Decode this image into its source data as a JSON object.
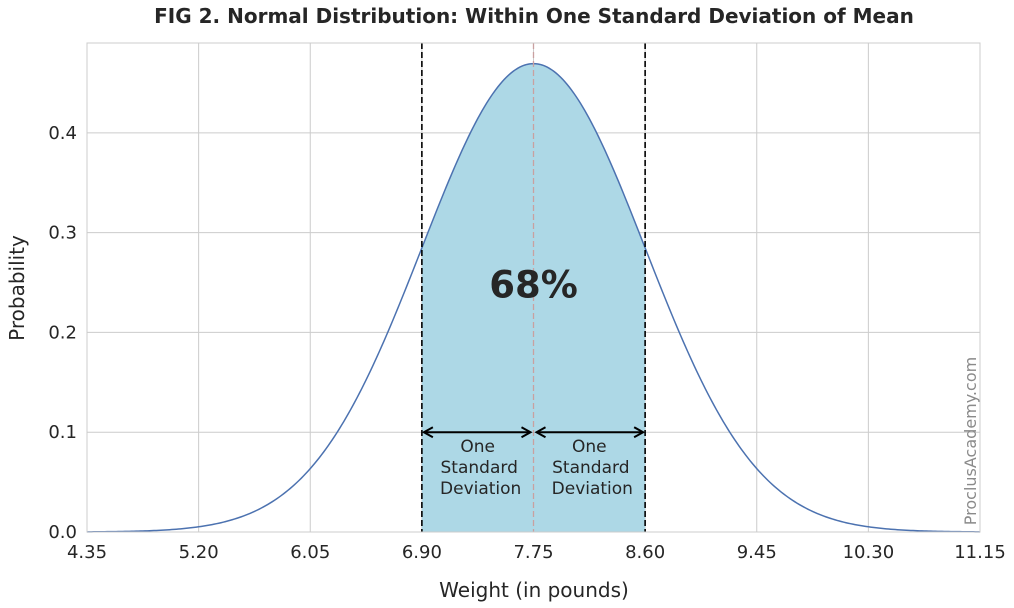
{
  "chart_data": {
    "type": "line",
    "title": "FIG 2. Normal Distribution: Within One Standard Deviation of Mean",
    "xlabel": "Weight (in pounds)",
    "ylabel": "Probability",
    "xlim": [
      4.35,
      11.15
    ],
    "ylim": [
      0.0,
      0.49
    ],
    "grid": true,
    "xticks": [
      4.35,
      5.2,
      6.05,
      6.9,
      7.75,
      8.6,
      9.45,
      10.3,
      11.15
    ],
    "xtick_labels": [
      "4.35",
      "5.20",
      "6.05",
      "6.90",
      "7.75",
      "8.60",
      "9.45",
      "10.30",
      "11.15"
    ],
    "yticks": [
      0.0,
      0.1,
      0.2,
      0.3,
      0.4
    ],
    "ytick_labels": [
      "0.0",
      "0.1",
      "0.2",
      "0.3",
      "0.4"
    ],
    "distribution": {
      "mean": 7.75,
      "std": 0.85
    },
    "shaded_region": {
      "from": 6.9,
      "to": 8.6,
      "color": "#add8e6"
    },
    "vlines": [
      {
        "x": 6.9,
        "style": "dashed",
        "color": "#000000"
      },
      {
        "x": 7.75,
        "style": "dashed",
        "color": "#c9a0a0"
      },
      {
        "x": 8.6,
        "style": "dashed",
        "color": "#000000"
      }
    ],
    "percent_label": "68%",
    "arrows": [
      {
        "from": 7.75,
        "to": 6.9,
        "y": 0.1
      },
      {
        "from": 7.75,
        "to": 8.6,
        "y": 0.1
      }
    ],
    "annotations": [
      {
        "lines": [
          "One",
          "Standard",
          "Deviation"
        ],
        "x": 7.325
      },
      {
        "lines": [
          "One",
          "Standard",
          "Deviation"
        ],
        "x": 8.175
      }
    ],
    "line_color": "#4c72b0",
    "watermark": "ProclusAcademy.com"
  }
}
